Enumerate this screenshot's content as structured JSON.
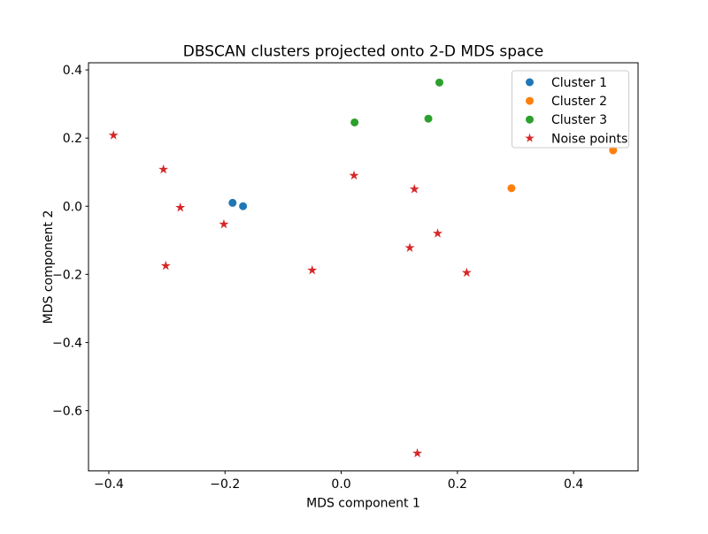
{
  "chart_data": {
    "type": "scatter",
    "title": "DBSCAN clusters projected onto 2-D MDS space",
    "xlabel": "MDS component 1",
    "ylabel": "MDS component 2",
    "xlim": [
      -0.435,
      0.511
    ],
    "ylim": [
      -0.777,
      0.421
    ],
    "grid": false,
    "x_ticks": {
      "values": [
        -0.4,
        -0.2,
        0.0,
        0.2,
        0.4
      ],
      "labels": [
        "−0.4",
        "−0.2",
        "0.0",
        "0.2",
        "0.4"
      ]
    },
    "y_ticks": {
      "values": [
        0.4,
        0.2,
        0.0,
        -0.2,
        -0.4,
        -0.6
      ],
      "labels": [
        "0.4",
        "0.2",
        "0.0",
        "−0.2",
        "−0.4",
        "−0.6"
      ]
    },
    "legend": {
      "position": "upper right",
      "frame_border_color": "#cccccc",
      "frame_fill_color": "#ffffff"
    },
    "series": [
      {
        "name": "Cluster 1",
        "marker": "circle",
        "color": "#1f77b4",
        "points": [
          [
            -0.187,
            0.01
          ],
          [
            -0.169,
            0.0
          ]
        ]
      },
      {
        "name": "Cluster 2",
        "marker": "circle",
        "color": "#ff7f0e",
        "points": [
          [
            0.293,
            0.053
          ],
          [
            0.468,
            0.164
          ]
        ]
      },
      {
        "name": "Cluster 3",
        "marker": "circle",
        "color": "#2ca02c",
        "points": [
          [
            0.023,
            0.246
          ],
          [
            0.15,
            0.257
          ],
          [
            0.169,
            0.363
          ]
        ]
      },
      {
        "name": "Noise points",
        "marker": "star",
        "color": "#d62728",
        "points": [
          [
            -0.392,
            0.208
          ],
          [
            -0.306,
            0.108
          ],
          [
            -0.277,
            -0.004
          ],
          [
            -0.202,
            -0.053
          ],
          [
            -0.302,
            -0.175
          ],
          [
            -0.05,
            -0.188
          ],
          [
            0.022,
            0.09
          ],
          [
            0.126,
            0.05
          ],
          [
            0.166,
            -0.08
          ],
          [
            0.118,
            -0.122
          ],
          [
            0.216,
            -0.195
          ],
          [
            0.131,
            -0.725
          ]
        ]
      }
    ],
    "axis_color": "#000000"
  }
}
